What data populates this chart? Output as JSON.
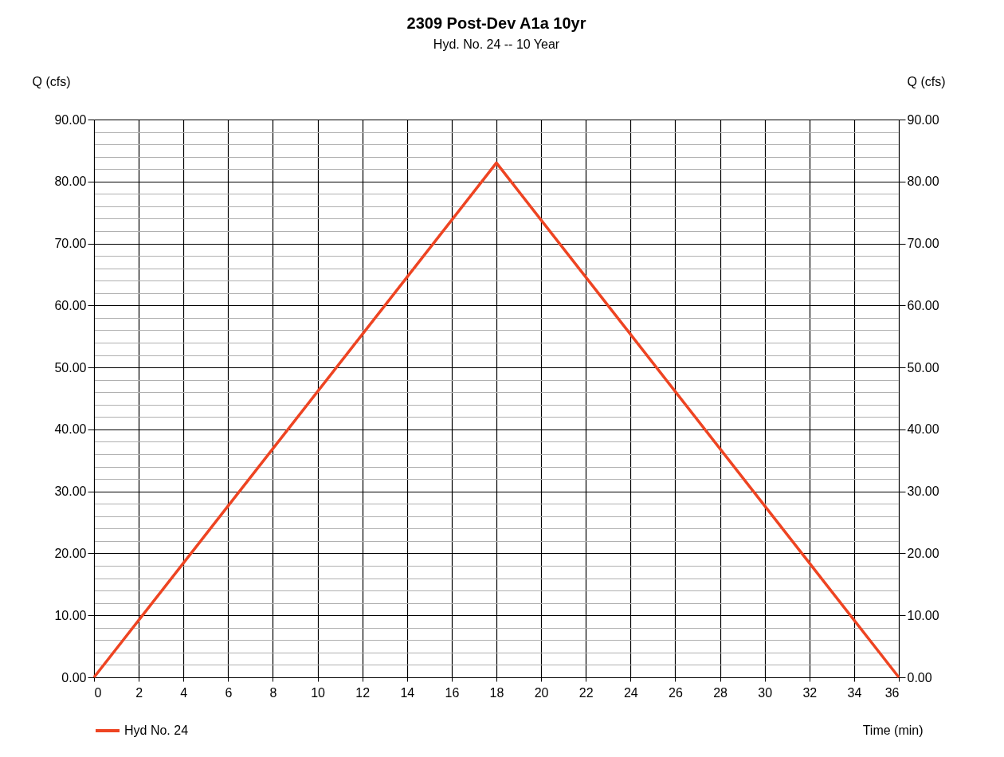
{
  "chart_data": {
    "type": "line",
    "title": "2309 Post-Dev A1a 10yr",
    "subtitle": "Hyd. No. 24 -- 10 Year",
    "xlabel": "Time (min)",
    "ylabel": "Q (cfs)",
    "y2label": "Q (cfs)",
    "x": [
      0,
      18,
      36
    ],
    "series": [
      {
        "name": "Hyd No. 24",
        "color": "#ee4422",
        "values": [
          0,
          83,
          0
        ]
      }
    ],
    "xlim": [
      0,
      36
    ],
    "xticks": [
      0,
      2,
      4,
      6,
      8,
      10,
      12,
      14,
      16,
      18,
      20,
      22,
      24,
      26,
      28,
      30,
      32,
      34,
      36
    ],
    "ylim": [
      0,
      90
    ],
    "yticks": [
      {
        "value": 0,
        "label": "0.00"
      },
      {
        "value": 2,
        "label": null
      },
      {
        "value": 4,
        "label": null
      },
      {
        "value": 6,
        "label": null
      },
      {
        "value": 8,
        "label": null
      },
      {
        "value": 10,
        "label": "10.00"
      },
      {
        "value": 12,
        "label": null
      },
      {
        "value": 14,
        "label": null
      },
      {
        "value": 16,
        "label": null
      },
      {
        "value": 18,
        "label": null
      },
      {
        "value": 20,
        "label": "20.00"
      },
      {
        "value": 22,
        "label": null
      },
      {
        "value": 24,
        "label": null
      },
      {
        "value": 26,
        "label": null
      },
      {
        "value": 28,
        "label": null
      },
      {
        "value": 30,
        "label": "30.00"
      },
      {
        "value": 32,
        "label": null
      },
      {
        "value": 34,
        "label": null
      },
      {
        "value": 36,
        "label": null
      },
      {
        "value": 38,
        "label": null
      },
      {
        "value": 40,
        "label": "40.00"
      },
      {
        "value": 42,
        "label": null
      },
      {
        "value": 44,
        "label": null
      },
      {
        "value": 46,
        "label": null
      },
      {
        "value": 48,
        "label": null
      },
      {
        "value": 50,
        "label": "50.00"
      },
      {
        "value": 52,
        "label": null
      },
      {
        "value": 54,
        "label": null
      },
      {
        "value": 56,
        "label": null
      },
      {
        "value": 58,
        "label": null
      },
      {
        "value": 60,
        "label": "60.00"
      },
      {
        "value": 62,
        "label": null
      },
      {
        "value": 64,
        "label": null
      },
      {
        "value": 66,
        "label": null
      },
      {
        "value": 68,
        "label": null
      },
      {
        "value": 70,
        "label": "70.00"
      },
      {
        "value": 72,
        "label": null
      },
      {
        "value": 74,
        "label": null
      },
      {
        "value": 76,
        "label": null
      },
      {
        "value": 78,
        "label": null
      },
      {
        "value": 80,
        "label": "80.00"
      },
      {
        "value": 82,
        "label": null
      },
      {
        "value": 84,
        "label": null
      },
      {
        "value": 86,
        "label": null
      },
      {
        "value": 88,
        "label": null
      },
      {
        "value": 90,
        "label": "90.00"
      }
    ],
    "y2lim": [
      0,
      90
    ],
    "y2ticks": [
      {
        "value": 0,
        "label": "0.00"
      },
      {
        "value": 10,
        "label": "10.00"
      },
      {
        "value": 20,
        "label": "20.00"
      },
      {
        "value": 30,
        "label": "30.00"
      },
      {
        "value": 40,
        "label": "40.00"
      },
      {
        "value": 50,
        "label": "50.00"
      },
      {
        "value": 60,
        "label": "60.00"
      },
      {
        "value": 70,
        "label": "70.00"
      },
      {
        "value": 80,
        "label": "80.00"
      },
      {
        "value": 90,
        "label": "90.00"
      }
    ],
    "grid": true,
    "legend": "bottom left",
    "marker": "none",
    "line_style": "solid"
  }
}
